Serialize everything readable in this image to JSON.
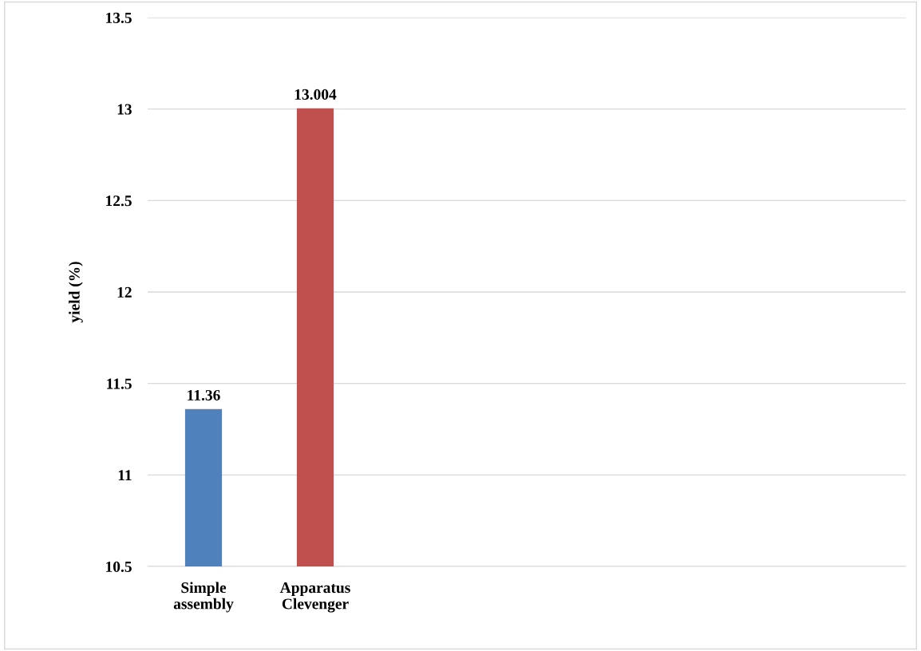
{
  "chart_data": {
    "type": "bar",
    "ylabel": "yield (%)",
    "categories": [
      "Simple assembly",
      "Apparatus Clevenger"
    ],
    "values": [
      11.36,
      13.004
    ],
    "colors": [
      "#4f81bd",
      "#c0504d"
    ],
    "data_labels": true,
    "ylim": [
      10.5,
      13.5
    ],
    "yticks": [
      10.5,
      11,
      11.5,
      12,
      12.5,
      13,
      13.5
    ],
    "grid": "y"
  }
}
